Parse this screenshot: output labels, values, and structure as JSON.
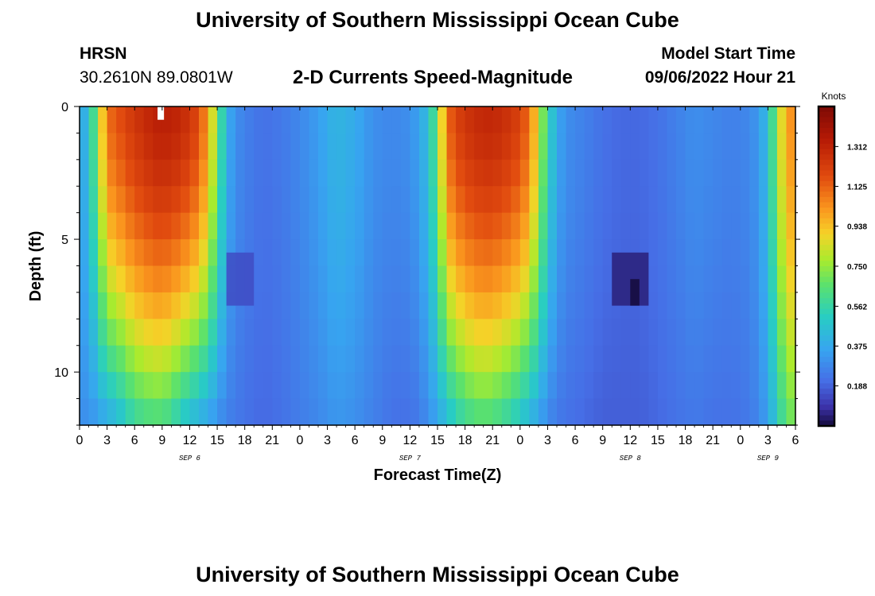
{
  "header": {
    "title": "University of Southern Mississippi Ocean Cube",
    "station": "HRSN",
    "coordinates": "30.2610N  89.0801W",
    "chart_title": "2-D Currents Speed-Magnitude",
    "model_start_label": "Model Start Time",
    "model_start_value": "09/06/2022 Hour 21"
  },
  "footer": {
    "title": "University of Southern Mississippi Ocean Cube"
  },
  "chart_data": {
    "type": "heatmap",
    "title": "2-D Currents Speed-Magnitude",
    "xlabel": "Forecast Time(Z)",
    "ylabel": "Depth (ft)",
    "x_range_hours": [
      0,
      78
    ],
    "x_tick_labels": [
      "0",
      "3",
      "6",
      "9",
      "12",
      "15",
      "18",
      "21",
      "0",
      "3",
      "6",
      "9",
      "12",
      "15",
      "18",
      "21",
      "0",
      "3",
      "6",
      "9",
      "12",
      "15",
      "18",
      "21",
      "0",
      "3",
      "6"
    ],
    "date_labels": [
      {
        "label": "SEP 6",
        "hour": 12
      },
      {
        "label": "SEP 7",
        "hour": 36
      },
      {
        "label": "SEP 8",
        "hour": 60
      },
      {
        "label": "SEP 9",
        "hour": 75
      }
    ],
    "y_range_ft": [
      0,
      12
    ],
    "y_reversed": true,
    "y_tick_labels": [
      "0",
      "5",
      "10"
    ],
    "colorbar": {
      "label": "Knots",
      "range": [
        0,
        1.5
      ],
      "ticks": [
        "1.312",
        "1.125",
        "0.938",
        "0.750",
        "0.562",
        "0.375",
        "0.188"
      ]
    },
    "speed_profile_by_hour": [
      {
        "hour": 0,
        "surface": 0.35,
        "bottom": 0.3
      },
      {
        "hour": 1,
        "surface": 0.45,
        "bottom": 0.3
      },
      {
        "hour": 2,
        "surface": 0.75,
        "bottom": 0.33
      },
      {
        "hour": 3,
        "surface": 1.1,
        "bottom": 0.37
      },
      {
        "hour": 4,
        "surface": 1.15,
        "bottom": 0.4
      },
      {
        "hour": 5,
        "surface": 1.2,
        "bottom": 0.48
      },
      {
        "hour": 6,
        "surface": 1.25,
        "bottom": 0.55
      },
      {
        "hour": 7,
        "surface": 1.28,
        "bottom": 0.58
      },
      {
        "hour": 8,
        "surface": 1.32,
        "bottom": 0.6
      },
      {
        "hour": 9,
        "surface": 1.33,
        "bottom": 0.6
      },
      {
        "hour": 10,
        "surface": 1.32,
        "bottom": 0.55
      },
      {
        "hour": 11,
        "surface": 1.3,
        "bottom": 0.48
      },
      {
        "hour": 12,
        "surface": 1.25,
        "bottom": 0.42
      },
      {
        "hour": 13,
        "surface": 1.18,
        "bottom": 0.38
      },
      {
        "hour": 14,
        "surface": 1.0,
        "bottom": 0.34
      },
      {
        "hour": 15,
        "surface": 0.7,
        "bottom": 0.3
      },
      {
        "hour": 16,
        "surface": 0.4,
        "bottom": 0.26
      },
      {
        "hour": 17,
        "surface": 0.3,
        "bottom": 0.24
      },
      {
        "hour": 18,
        "surface": 0.26,
        "bottom": 0.22
      },
      {
        "hour": 20,
        "surface": 0.22,
        "bottom": 0.2
      },
      {
        "hour": 22,
        "surface": 0.24,
        "bottom": 0.22
      },
      {
        "hour": 24,
        "surface": 0.28,
        "bottom": 0.25
      },
      {
        "hour": 26,
        "surface": 0.34,
        "bottom": 0.28
      },
      {
        "hour": 28,
        "surface": 0.42,
        "bottom": 0.32
      },
      {
        "hour": 30,
        "surface": 0.38,
        "bottom": 0.3
      },
      {
        "hour": 32,
        "surface": 0.3,
        "bottom": 0.26
      },
      {
        "hour": 34,
        "surface": 0.28,
        "bottom": 0.22
      },
      {
        "hour": 36,
        "surface": 0.3,
        "bottom": 0.22
      },
      {
        "hour": 37,
        "surface": 0.36,
        "bottom": 0.24
      },
      {
        "hour": 38,
        "surface": 0.45,
        "bottom": 0.3
      },
      {
        "hour": 39,
        "surface": 0.7,
        "bottom": 0.35
      },
      {
        "hour": 40,
        "surface": 1.1,
        "bottom": 0.42
      },
      {
        "hour": 41,
        "surface": 1.2,
        "bottom": 0.5
      },
      {
        "hour": 42,
        "surface": 1.25,
        "bottom": 0.56
      },
      {
        "hour": 43,
        "surface": 1.28,
        "bottom": 0.6
      },
      {
        "hour": 44,
        "surface": 1.3,
        "bottom": 0.62
      },
      {
        "hour": 45,
        "surface": 1.3,
        "bottom": 0.6
      },
      {
        "hour": 46,
        "surface": 1.28,
        "bottom": 0.56
      },
      {
        "hour": 47,
        "surface": 1.25,
        "bottom": 0.52
      },
      {
        "hour": 48,
        "surface": 1.2,
        "bottom": 0.46
      },
      {
        "hour": 49,
        "surface": 1.1,
        "bottom": 0.4
      },
      {
        "hour": 50,
        "surface": 0.85,
        "bottom": 0.34
      },
      {
        "hour": 51,
        "surface": 0.55,
        "bottom": 0.28
      },
      {
        "hour": 52,
        "surface": 0.38,
        "bottom": 0.24
      },
      {
        "hour": 53,
        "surface": 0.3,
        "bottom": 0.22
      },
      {
        "hour": 55,
        "surface": 0.26,
        "bottom": 0.2
      },
      {
        "hour": 57,
        "surface": 0.22,
        "bottom": 0.18
      },
      {
        "hour": 59,
        "surface": 0.2,
        "bottom": 0.18
      },
      {
        "hour": 61,
        "surface": 0.2,
        "bottom": 0.18
      },
      {
        "hour": 63,
        "surface": 0.22,
        "bottom": 0.2
      },
      {
        "hour": 65,
        "surface": 0.26,
        "bottom": 0.22
      },
      {
        "hour": 67,
        "surface": 0.3,
        "bottom": 0.24
      },
      {
        "hour": 69,
        "surface": 0.28,
        "bottom": 0.22
      },
      {
        "hour": 71,
        "surface": 0.26,
        "bottom": 0.22
      },
      {
        "hour": 73,
        "surface": 0.28,
        "bottom": 0.24
      },
      {
        "hour": 74,
        "surface": 0.33,
        "bottom": 0.28
      },
      {
        "hour": 75,
        "surface": 0.45,
        "bottom": 0.35
      },
      {
        "hour": 76,
        "surface": 0.75,
        "bottom": 0.5
      },
      {
        "hour": 77,
        "surface": 1.0,
        "bottom": 0.65
      },
      {
        "hour": 78,
        "surface": 1.05,
        "bottom": 0.7
      }
    ],
    "low_speed_patches": [
      {
        "hour_range": [
          16,
          19
        ],
        "depth_range_ft": [
          5.5,
          7.5
        ],
        "value": 0.14
      },
      {
        "hour_range": [
          58,
          62
        ],
        "depth_range_ft": [
          5.5,
          7.5
        ],
        "value": 0.05
      },
      {
        "hour_range": [
          60,
          61
        ],
        "depth_range_ft": [
          6.5,
          7.5
        ],
        "value": 0.0
      }
    ],
    "missing_cells": [
      {
        "hour_range": [
          8.5,
          9.2
        ],
        "depth_range_ft": [
          0,
          0.5
        ]
      }
    ]
  }
}
